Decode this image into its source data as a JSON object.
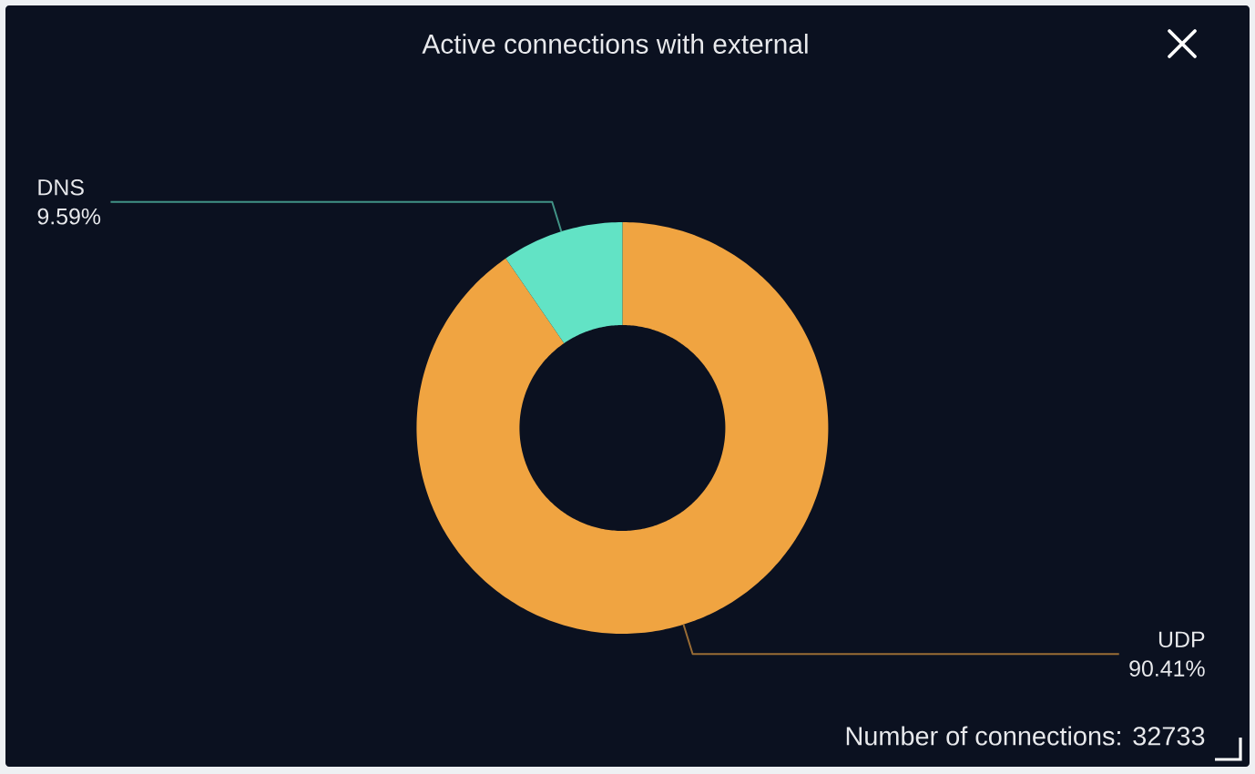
{
  "chart_data": {
    "type": "donut",
    "title": "Active connections with external",
    "categories": [
      "UDP",
      "DNS"
    ],
    "values": [
      90.41,
      9.59
    ],
    "colors": [
      "#f0a441",
      "#62e3c5"
    ],
    "value_labels": [
      "90.41%",
      "9.59%"
    ],
    "annotations": [
      "Number of connections: 32733"
    ]
  }
}
